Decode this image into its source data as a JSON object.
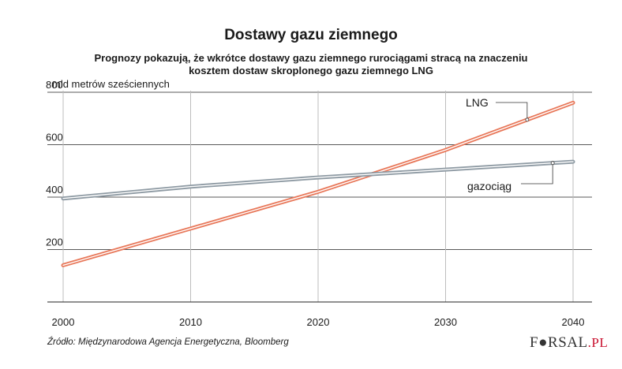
{
  "chart_data": {
    "type": "line",
    "title": "Dostawy gazu ziemnego",
    "subtitle_line1": "Prognozy pokazują, że wkrótce dostawy gazu ziemnego rurociągami stracą na znaczeniu",
    "subtitle_line2": "kosztem dostaw skroplonego gazu ziemnego LNG",
    "ylabel": "mld metrów sześciennych",
    "xlabel": "",
    "x": [
      2000,
      2010,
      2020,
      2025,
      2030,
      2040
    ],
    "xlim": [
      2000,
      2040
    ],
    "ylim": [
      0,
      800
    ],
    "xticks": [
      2000,
      2010,
      2020,
      2030,
      2040
    ],
    "yticks": [
      200,
      400,
      600,
      800
    ],
    "grid": true,
    "series": [
      {
        "name": "LNG",
        "color": "#e8785a",
        "values": [
          140,
          280,
          420,
          500,
          580,
          760
        ]
      },
      {
        "name": "gazociąg",
        "color": "#8e9aa3",
        "values": [
          395,
          440,
          475,
          490,
          505,
          535
        ]
      }
    ],
    "source": "Źródło: Międzynarodowa Agencja Energetyczna, Bloomberg"
  },
  "logo": {
    "main": "F●RSAL",
    "suffix": ".PL"
  }
}
